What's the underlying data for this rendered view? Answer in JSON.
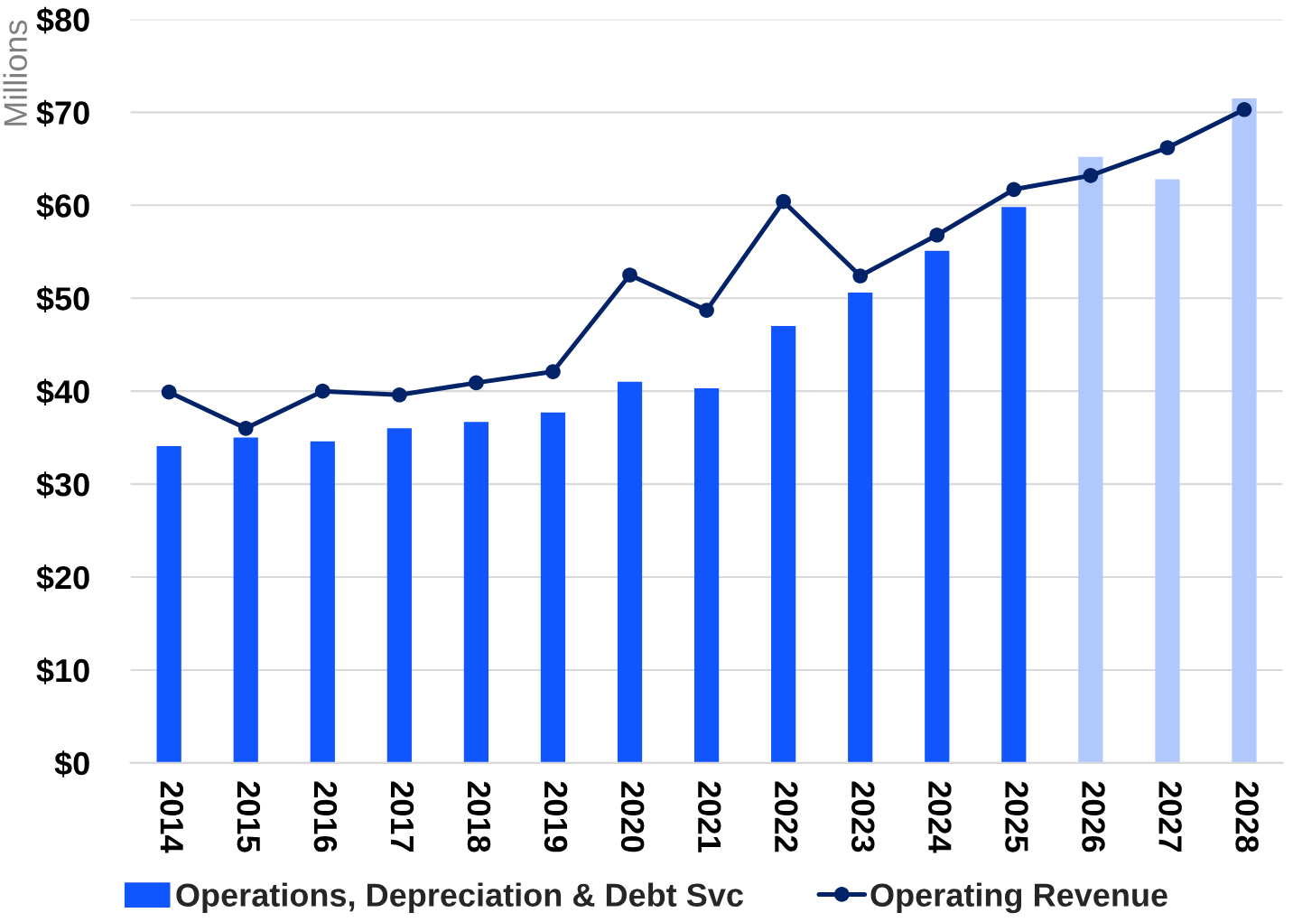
{
  "chart_data": {
    "type": "bar",
    "ylabel": "Millions",
    "categories": [
      "2014",
      "2015",
      "2016",
      "2017",
      "2018",
      "2019",
      "2020",
      "2021",
      "2022",
      "2023",
      "2024",
      "2025",
      "2026",
      "2027",
      "2028"
    ],
    "series": [
      {
        "name": "Operations, Depreciation & Debt Svc",
        "color": "#1155fe",
        "colors": [
          "#1155fe",
          "#1155fe",
          "#1155fe",
          "#1155fe",
          "#1155fe",
          "#1155fe",
          "#1155fe",
          "#1155fe",
          "#1155fe",
          "#1155fe",
          "#1155fe",
          "#1155fe",
          "#b0c8fc",
          "#b0c8fc",
          "#b0c8fc"
        ],
        "values": [
          34.1,
          35.0,
          34.6,
          36.0,
          36.7,
          37.7,
          41.0,
          40.3,
          47.0,
          50.6,
          55.1,
          59.8,
          65.2,
          62.8,
          71.5
        ]
      },
      {
        "name": "Operating Revenue",
        "type": "line",
        "color": "#032369",
        "marker": "circle",
        "line_style": "solid",
        "values": [
          39.9,
          36.0,
          40.0,
          39.6,
          40.9,
          42.1,
          52.5,
          48.7,
          60.4,
          52.4,
          56.8,
          61.7,
          63.2,
          66.2,
          70.3
        ]
      }
    ],
    "ylim": [
      0,
      80
    ],
    "yticks": [
      {
        "value": 0,
        "label": "$0"
      },
      {
        "value": 10,
        "label": "$10"
      },
      {
        "value": 20,
        "label": "$20"
      },
      {
        "value": 30,
        "label": "$30"
      },
      {
        "value": 40,
        "label": "$40"
      },
      {
        "value": 50,
        "label": "$50"
      },
      {
        "value": 60,
        "label": "$60"
      },
      {
        "value": 70,
        "label": "$70"
      },
      {
        "value": 80,
        "label": "$80"
      }
    ],
    "grid": "y",
    "legend": "bottom"
  }
}
